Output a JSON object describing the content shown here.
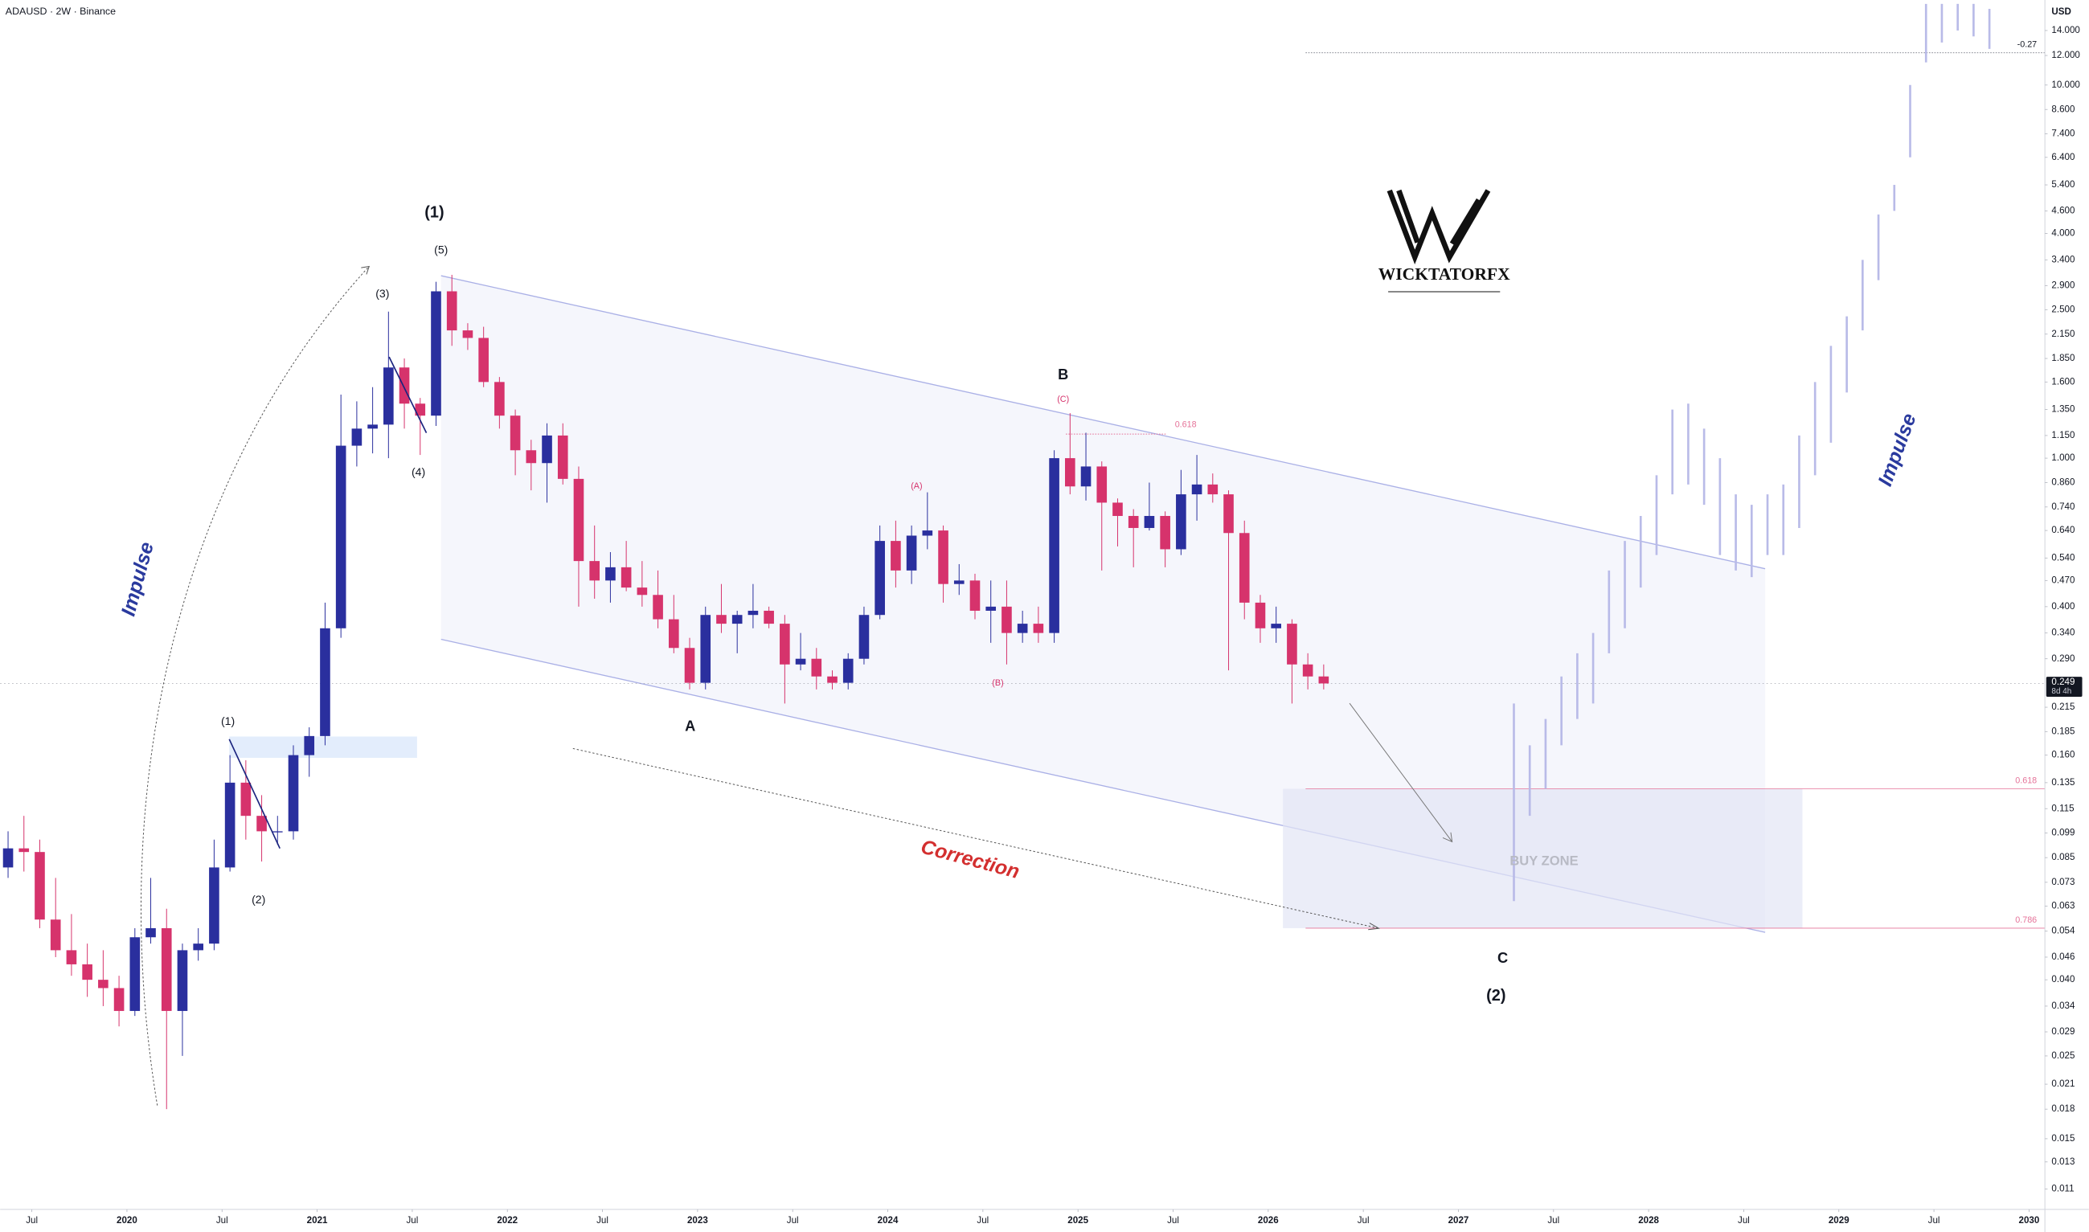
{
  "header": "ADAUSD · 2W · Binance",
  "chart_data": {
    "type": "candlestick",
    "y_unit": "USD",
    "log_scale": true,
    "up_color": "#2a2f9e",
    "down_color": "#d6336c",
    "projection_color": "#b9bbe8",
    "xlim": [
      "2019-05",
      "2030-02"
    ],
    "ylim": [
      0.0097,
      16.9
    ],
    "xticks": [
      {
        "value": "2019-07",
        "label": "Jul"
      },
      {
        "value": "2020-01",
        "label": "2020"
      },
      {
        "value": "2020-07",
        "label": "Jul"
      },
      {
        "value": "2021-01",
        "label": "2021"
      },
      {
        "value": "2021-07",
        "label": "Jul"
      },
      {
        "value": "2022-01",
        "label": "2022"
      },
      {
        "value": "2022-07",
        "label": "Jul"
      },
      {
        "value": "2023-01",
        "label": "2023"
      },
      {
        "value": "2023-07",
        "label": "Jul"
      },
      {
        "value": "2024-01",
        "label": "2024"
      },
      {
        "value": "2024-07",
        "label": "Jul"
      },
      {
        "value": "2025-01",
        "label": "2025"
      },
      {
        "value": "2025-07",
        "label": "Jul"
      },
      {
        "value": "2026-01",
        "label": "2026"
      },
      {
        "value": "2026-07",
        "label": "Jul"
      },
      {
        "value": "2027-01",
        "label": "2027"
      },
      {
        "value": "2027-07",
        "label": "Jul"
      },
      {
        "value": "2028-01",
        "label": "2028"
      },
      {
        "value": "2028-07",
        "label": "Jul"
      },
      {
        "value": "2029-01",
        "label": "2029"
      },
      {
        "value": "2029-07",
        "label": "Jul"
      },
      {
        "value": "2030-01",
        "label": "2030"
      }
    ],
    "yticks": [
      {
        "value": 14,
        "label": "14.000"
      },
      {
        "value": 12,
        "label": "12.000"
      },
      {
        "value": 10,
        "label": "10.000"
      },
      {
        "value": 8.6,
        "label": "8.600"
      },
      {
        "value": 7.4,
        "label": "7.400"
      },
      {
        "value": 6.4,
        "label": "6.400"
      },
      {
        "value": 5.4,
        "label": "5.400"
      },
      {
        "value": 4.6,
        "label": "4.600"
      },
      {
        "value": 4,
        "label": "4.000"
      },
      {
        "value": 3.4,
        "label": "3.400"
      },
      {
        "value": 2.9,
        "label": "2.900"
      },
      {
        "value": 2.5,
        "label": "2.500"
      },
      {
        "value": 2.15,
        "label": "2.150"
      },
      {
        "value": 1.85,
        "label": "1.850"
      },
      {
        "value": 1.6,
        "label": "1.600"
      },
      {
        "value": 1.35,
        "label": "1.350"
      },
      {
        "value": 1.15,
        "label": "1.150"
      },
      {
        "value": 1,
        "label": "1.000"
      },
      {
        "value": 0.86,
        "label": "0.860"
      },
      {
        "value": 0.74,
        "label": "0.740"
      },
      {
        "value": 0.64,
        "label": "0.640"
      },
      {
        "value": 0.54,
        "label": "0.540"
      },
      {
        "value": 0.47,
        "label": "0.470"
      },
      {
        "value": 0.4,
        "label": "0.400"
      },
      {
        "value": 0.34,
        "label": "0.340"
      },
      {
        "value": 0.29,
        "label": "0.290"
      },
      {
        "value": 0.215,
        "label": "0.215"
      },
      {
        "value": 0.185,
        "label": "0.185"
      },
      {
        "value": 0.16,
        "label": "0.160"
      },
      {
        "value": 0.135,
        "label": "0.135"
      },
      {
        "value": 0.115,
        "label": "0.115"
      },
      {
        "value": 0.099,
        "label": "0.099"
      },
      {
        "value": 0.085,
        "label": "0.085"
      },
      {
        "value": 0.073,
        "label": "0.073"
      },
      {
        "value": 0.063,
        "label": "0.063"
      },
      {
        "value": 0.054,
        "label": "0.054"
      },
      {
        "value": 0.046,
        "label": "0.046"
      },
      {
        "value": 0.04,
        "label": "0.040"
      },
      {
        "value": 0.034,
        "label": "0.034"
      },
      {
        "value": 0.029,
        "label": "0.029"
      },
      {
        "value": 0.025,
        "label": "0.025"
      },
      {
        "value": 0.021,
        "label": "0.021"
      },
      {
        "value": 0.018,
        "label": "0.018"
      },
      {
        "value": 0.015,
        "label": "0.015"
      },
      {
        "value": 0.013,
        "label": "0.013"
      },
      {
        "value": 0.011,
        "label": "0.011"
      }
    ],
    "candles": {
      "x": [
        "2019-05",
        "2019-06",
        "2019-07",
        "2019-08",
        "2019-09",
        "2019-10",
        "2019-11",
        "2019-12",
        "2020-01",
        "2020-02",
        "2020-03",
        "2020-04",
        "2020-05",
        "2020-06",
        "2020-07",
        "2020-08",
        "2020-09",
        "2020-10",
        "2020-11",
        "2020-12",
        "2021-01",
        "2021-02",
        "2021-03",
        "2021-04",
        "2021-05",
        "2021-06",
        "2021-07",
        "2021-08",
        "2021-09",
        "2021-10",
        "2021-11",
        "2021-12",
        "2022-01",
        "2022-02",
        "2022-03",
        "2022-04",
        "2022-05",
        "2022-06",
        "2022-07",
        "2022-08",
        "2022-09",
        "2022-10",
        "2022-11",
        "2022-12",
        "2023-01",
        "2023-02",
        "2023-03",
        "2023-04",
        "2023-05",
        "2023-06",
        "2023-07",
        "2023-08",
        "2023-09",
        "2023-10",
        "2023-11",
        "2023-12",
        "2024-01",
        "2024-02",
        "2024-03",
        "2024-04",
        "2024-05",
        "2024-06",
        "2024-07",
        "2024-08",
        "2024-09",
        "2024-10",
        "2024-11",
        "2024-12",
        "2025-01",
        "2025-02",
        "2025-03",
        "2025-04",
        "2025-05",
        "2025-06",
        "2025-07",
        "2025-08",
        "2025-09",
        "2025-10",
        "2025-11",
        "2025-12",
        "2026-01",
        "2026-02",
        "2026-03",
        "2026-04"
      ],
      "open": [
        0.08,
        0.09,
        0.088,
        0.058,
        0.048,
        0.044,
        0.04,
        0.038,
        0.033,
        0.052,
        0.055,
        0.033,
        0.048,
        0.05,
        0.08,
        0.135,
        0.11,
        0.1,
        0.1,
        0.16,
        0.18,
        0.35,
        1.08,
        1.2,
        1.23,
        1.75,
        1.4,
        1.3,
        2.8,
        2.2,
        2.1,
        1.6,
        1.3,
        1.05,
        0.97,
        1.15,
        0.88,
        0.53,
        0.47,
        0.51,
        0.45,
        0.43,
        0.37,
        0.31,
        0.25,
        0.38,
        0.36,
        0.38,
        0.39,
        0.36,
        0.28,
        0.29,
        0.26,
        0.25,
        0.29,
        0.38,
        0.6,
        0.5,
        0.62,
        0.64,
        0.46,
        0.47,
        0.39,
        0.4,
        0.34,
        0.36,
        0.34,
        1.0,
        0.84,
        0.95,
        0.76,
        0.7,
        0.65,
        0.7,
        0.57,
        0.8,
        0.85,
        0.8,
        0.63,
        0.41,
        0.35,
        0.36,
        0.28,
        0.26
      ],
      "high": [
        0.1,
        0.11,
        0.095,
        0.075,
        0.06,
        0.05,
        0.048,
        0.041,
        0.055,
        0.075,
        0.062,
        0.05,
        0.055,
        0.095,
        0.16,
        0.155,
        0.125,
        0.11,
        0.17,
        0.19,
        0.41,
        1.48,
        1.42,
        1.55,
        2.47,
        1.85,
        1.45,
        2.97,
        3.1,
        2.3,
        2.25,
        1.65,
        1.35,
        1.12,
        1.24,
        1.24,
        0.95,
        0.66,
        0.56,
        0.6,
        0.53,
        0.5,
        0.43,
        0.33,
        0.4,
        0.46,
        0.39,
        0.46,
        0.4,
        0.38,
        0.34,
        0.31,
        0.27,
        0.3,
        0.4,
        0.66,
        0.68,
        0.66,
        0.81,
        0.66,
        0.52,
        0.49,
        0.47,
        0.47,
        0.39,
        0.4,
        1.05,
        1.32,
        1.17,
        0.98,
        0.78,
        0.73,
        0.86,
        0.72,
        0.93,
        1.02,
        0.91,
        0.82,
        0.68,
        0.43,
        0.4,
        0.37,
        0.3,
        0.28
      ],
      "low": [
        0.075,
        0.078,
        0.055,
        0.046,
        0.041,
        0.036,
        0.034,
        0.03,
        0.032,
        0.05,
        0.018,
        0.025,
        0.045,
        0.048,
        0.078,
        0.095,
        0.083,
        0.092,
        0.095,
        0.14,
        0.17,
        0.33,
        0.95,
        1.03,
        1.0,
        1.2,
        1.02,
        1.22,
        2.0,
        1.95,
        1.55,
        1.2,
        0.9,
        0.82,
        0.76,
        0.85,
        0.4,
        0.42,
        0.41,
        0.44,
        0.4,
        0.35,
        0.3,
        0.24,
        0.24,
        0.34,
        0.3,
        0.35,
        0.35,
        0.22,
        0.27,
        0.24,
        0.24,
        0.24,
        0.28,
        0.37,
        0.45,
        0.46,
        0.57,
        0.41,
        0.43,
        0.37,
        0.32,
        0.28,
        0.32,
        0.32,
        0.32,
        0.8,
        0.77,
        0.5,
        0.58,
        0.51,
        0.64,
        0.51,
        0.55,
        0.68,
        0.76,
        0.27,
        0.37,
        0.32,
        0.32,
        0.22,
        0.24,
        0.24
      ],
      "close": [
        0.09,
        0.088,
        0.058,
        0.048,
        0.044,
        0.04,
        0.038,
        0.033,
        0.052,
        0.055,
        0.033,
        0.048,
        0.05,
        0.08,
        0.135,
        0.11,
        0.1,
        0.1,
        0.16,
        0.18,
        0.35,
        1.08,
        1.2,
        1.23,
        1.75,
        1.4,
        1.3,
        2.8,
        2.2,
        2.1,
        1.6,
        1.3,
        1.05,
        0.97,
        1.15,
        0.88,
        0.53,
        0.47,
        0.51,
        0.45,
        0.43,
        0.37,
        0.31,
        0.25,
        0.38,
        0.36,
        0.38,
        0.39,
        0.36,
        0.28,
        0.29,
        0.26,
        0.25,
        0.29,
        0.38,
        0.6,
        0.5,
        0.62,
        0.64,
        0.46,
        0.47,
        0.39,
        0.4,
        0.34,
        0.36,
        0.34,
        1.0,
        0.84,
        0.95,
        0.76,
        0.7,
        0.65,
        0.7,
        0.57,
        0.8,
        0.85,
        0.8,
        0.63,
        0.41,
        0.35,
        0.36,
        0.28,
        0.26,
        0.249
      ]
    },
    "projection": {
      "x": [
        "2027-04",
        "2027-05",
        "2027-06",
        "2027-07",
        "2027-08",
        "2027-09",
        "2027-10",
        "2027-11",
        "2027-12",
        "2028-01",
        "2028-02",
        "2028-03",
        "2028-04",
        "2028-05",
        "2028-06",
        "2028-07",
        "2028-08",
        "2028-09",
        "2028-10",
        "2028-11",
        "2028-12",
        "2029-01",
        "2029-02",
        "2029-03",
        "2029-04",
        "2029-05",
        "2029-06",
        "2029-07",
        "2029-08",
        "2029-09",
        "2029-10"
      ],
      "high": [
        0.22,
        0.17,
        0.2,
        0.26,
        0.3,
        0.34,
        0.5,
        0.6,
        0.7,
        0.9,
        1.35,
        1.4,
        1.2,
        1.0,
        0.8,
        0.75,
        0.8,
        0.85,
        1.15,
        1.6,
        2.0,
        2.4,
        3.4,
        4.5,
        5.4,
        10.0,
        16.5,
        16.5,
        16.5,
        16.5,
        16.0
      ],
      "low": [
        0.065,
        0.11,
        0.13,
        0.17,
        0.2,
        0.22,
        0.3,
        0.35,
        0.45,
        0.55,
        0.8,
        0.85,
        0.75,
        0.55,
        0.5,
        0.48,
        0.55,
        0.55,
        0.65,
        0.9,
        1.1,
        1.5,
        2.2,
        3.0,
        4.6,
        6.4,
        11.5,
        13.0,
        14.0,
        13.5,
        12.5
      ]
    },
    "levels": [
      {
        "label": "0.618",
        "price": 0.13,
        "color": "#e57399"
      },
      {
        "label": "0.786",
        "price": 0.055,
        "color": "#e57399"
      },
      {
        "label": "-0.27",
        "price": 12.2,
        "color": "#787b86"
      }
    ],
    "b_fib": {
      "label": "0.618",
      "price": 1.16,
      "color": "#e57399"
    },
    "last_price": {
      "value": 0.249,
      "label": "0.249"
    },
    "countdown": "8d 4h"
  },
  "annotations": [
    "(1)",
    "(5)",
    "(3)",
    "(4)",
    "(1)",
    "(2)",
    "Impulse",
    "A",
    "B",
    "(C)",
    "(A)",
    "(B)",
    "Correction",
    "BUY ZONE",
    "C",
    "(2)",
    "Impulse",
    "WICKTATORFX"
  ]
}
